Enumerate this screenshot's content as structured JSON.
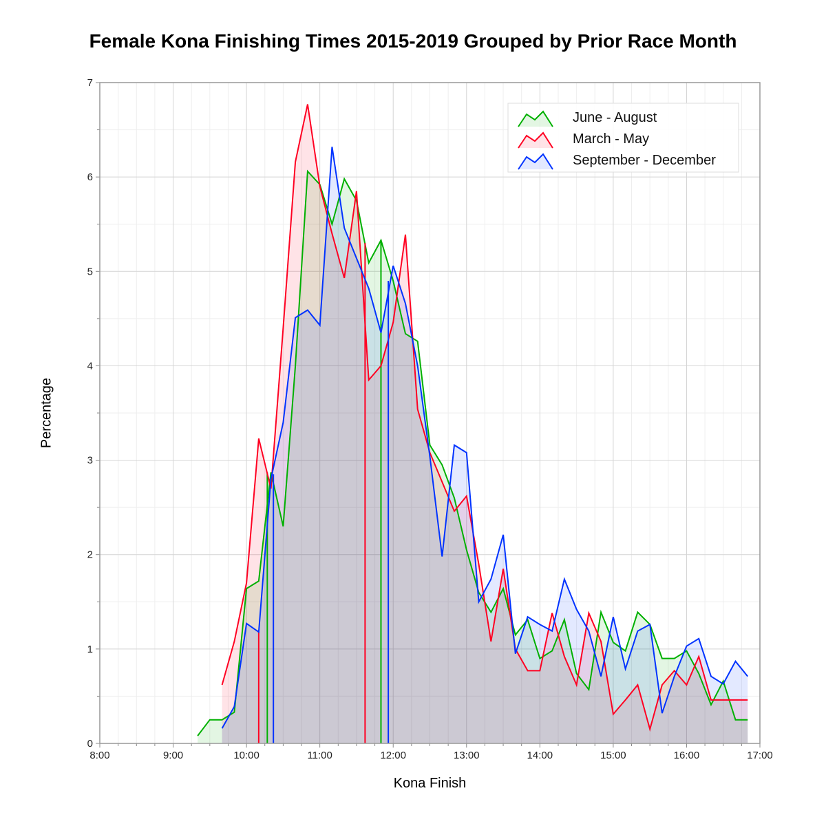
{
  "chart_data": {
    "type": "area",
    "title": "Female Kona Finishing Times 2015-2019 Grouped by Prior Race Month",
    "xlabel": "Kona Finish",
    "ylabel": "Percentage",
    "xlim": [
      "8:00",
      "17:00"
    ],
    "ylim": [
      0,
      7
    ],
    "x_ticks": [
      "8:00",
      "9:00",
      "10:00",
      "11:00",
      "12:00",
      "13:00",
      "14:00",
      "15:00",
      "16:00",
      "17:00"
    ],
    "y_ticks": [
      "0",
      "1",
      "2",
      "3",
      "4",
      "5",
      "6",
      "7"
    ],
    "grid": true,
    "legend_position": "top-right",
    "series": [
      {
        "name": "June - August",
        "color": "#00b000",
        "x": [
          "9:20",
          "9:30",
          "9:40",
          "9:50",
          "10:00",
          "10:10",
          "10:20",
          "10:30",
          "10:40",
          "10:50",
          "11:00",
          "11:10",
          "11:20",
          "11:30",
          "11:40",
          "11:50",
          "12:00",
          "12:10",
          "12:20",
          "12:30",
          "12:40",
          "12:50",
          "13:00",
          "13:10",
          "13:20",
          "13:30",
          "13:40",
          "13:50",
          "14:00",
          "14:10",
          "14:20",
          "14:30",
          "14:40",
          "14:50",
          "15:00",
          "15:10",
          "15:20",
          "15:30",
          "15:40",
          "15:50",
          "16:00",
          "16:10",
          "16:20",
          "16:30",
          "16:40",
          "16:50"
        ],
        "values": [
          0.08,
          0.25,
          0.25,
          0.33,
          1.64,
          1.72,
          2.87,
          2.3,
          4.0,
          6.06,
          5.92,
          5.5,
          5.98,
          5.75,
          5.09,
          5.33,
          4.9,
          4.34,
          4.26,
          3.16,
          2.95,
          2.6,
          2.05,
          1.6,
          1.39,
          1.64,
          1.15,
          1.31,
          0.9,
          0.98,
          1.31,
          0.74,
          0.57,
          1.39,
          1.07,
          0.98,
          1.39,
          1.26,
          0.9,
          0.9,
          0.98,
          0.74,
          0.41,
          0.66,
          0.25,
          0.25
        ],
        "markers": [
          {
            "x": "10:17",
            "y": 2.87
          },
          {
            "x": "11:50",
            "y": 5.33
          }
        ]
      },
      {
        "name": "March - May",
        "color": "#ff0022",
        "x": [
          "9:40",
          "9:50",
          "10:00",
          "10:10",
          "10:20",
          "10:30",
          "10:40",
          "10:50",
          "11:00",
          "11:10",
          "11:20",
          "11:30",
          "11:40",
          "11:50",
          "12:00",
          "12:10",
          "12:20",
          "12:30",
          "12:40",
          "12:50",
          "13:00",
          "13:10",
          "13:20",
          "13:30",
          "13:40",
          "13:50",
          "14:00",
          "14:10",
          "14:20",
          "14:30",
          "14:40",
          "14:50",
          "15:00",
          "15:10",
          "15:20",
          "15:30",
          "15:40",
          "15:50",
          "16:00",
          "16:10",
          "16:20",
          "16:30",
          "16:40",
          "16:50"
        ],
        "values": [
          0.62,
          1.08,
          1.7,
          3.23,
          2.7,
          4.4,
          6.16,
          6.77,
          5.9,
          5.4,
          4.93,
          5.85,
          3.85,
          4.0,
          4.46,
          5.39,
          3.54,
          3.08,
          2.77,
          2.46,
          2.62,
          1.9,
          1.08,
          1.85,
          1.0,
          0.77,
          0.77,
          1.38,
          0.92,
          0.62,
          1.38,
          1.08,
          0.31,
          0.46,
          0.62,
          0.15,
          0.62,
          0.77,
          0.62,
          0.92,
          0.46,
          0.46,
          0.46,
          0.46
        ],
        "markers": [
          {
            "x": "10:10",
            "y": 1.2
          },
          {
            "x": "11:37",
            "y": 5.3
          }
        ]
      },
      {
        "name": "September - December",
        "color": "#0033ff",
        "x": [
          "9:40",
          "9:50",
          "10:00",
          "10:10",
          "10:20",
          "10:30",
          "10:40",
          "10:50",
          "11:00",
          "11:10",
          "11:20",
          "11:30",
          "11:40",
          "11:50",
          "12:00",
          "12:10",
          "12:20",
          "12:30",
          "12:40",
          "12:50",
          "13:00",
          "13:10",
          "13:20",
          "13:30",
          "13:40",
          "13:50",
          "14:00",
          "14:10",
          "14:20",
          "14:30",
          "14:40",
          "14:50",
          "15:00",
          "15:10",
          "15:20",
          "15:30",
          "15:40",
          "15:50",
          "16:00",
          "16:10",
          "16:20",
          "16:30",
          "16:40",
          "16:50"
        ],
        "values": [
          0.16,
          0.39,
          1.27,
          1.18,
          2.8,
          3.4,
          4.51,
          4.59,
          4.43,
          6.32,
          5.46,
          5.14,
          4.82,
          4.35,
          5.06,
          4.66,
          4.0,
          3.04,
          1.98,
          3.16,
          3.08,
          1.5,
          1.74,
          2.21,
          0.95,
          1.34,
          1.26,
          1.19,
          1.74,
          1.42,
          1.19,
          0.71,
          1.34,
          0.79,
          1.19,
          1.26,
          0.32,
          0.71,
          1.03,
          1.11,
          0.71,
          0.63,
          0.87,
          0.71
        ],
        "markers": [
          {
            "x": "10:22",
            "y": 2.85
          },
          {
            "x": "11:56",
            "y": 4.9
          }
        ]
      }
    ]
  }
}
